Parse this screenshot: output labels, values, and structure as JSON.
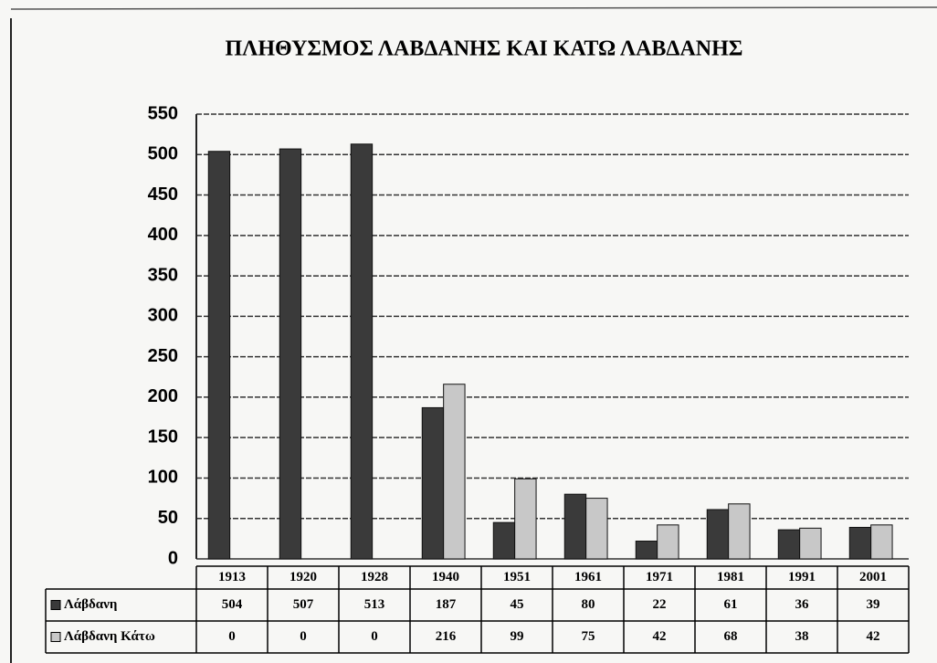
{
  "chart_data": {
    "type": "bar",
    "title": "ΠΛΗΘΥΣΜΟΣ ΛΑΒΔΑΝΗΣ ΚΑΙ ΚΑΤΩ ΛΑΒΔΑΝΗΣ",
    "categories": [
      "1913",
      "1920",
      "1928",
      "1940",
      "1951",
      "1961",
      "1971",
      "1981",
      "1991",
      "2001"
    ],
    "series": [
      {
        "name": "Λάβδανη",
        "color": "#3a3a3a",
        "values": [
          504,
          507,
          513,
          187,
          45,
          80,
          22,
          61,
          36,
          39
        ]
      },
      {
        "name": "Λάβδανη Κάτω",
        "color": "#c8c8c8",
        "values": [
          0,
          0,
          0,
          216,
          99,
          75,
          42,
          68,
          38,
          42
        ]
      }
    ],
    "ylim": [
      0,
      550
    ],
    "yticks": [
      0,
      50,
      100,
      150,
      200,
      250,
      300,
      350,
      400,
      450,
      500,
      550
    ],
    "grid": true
  }
}
